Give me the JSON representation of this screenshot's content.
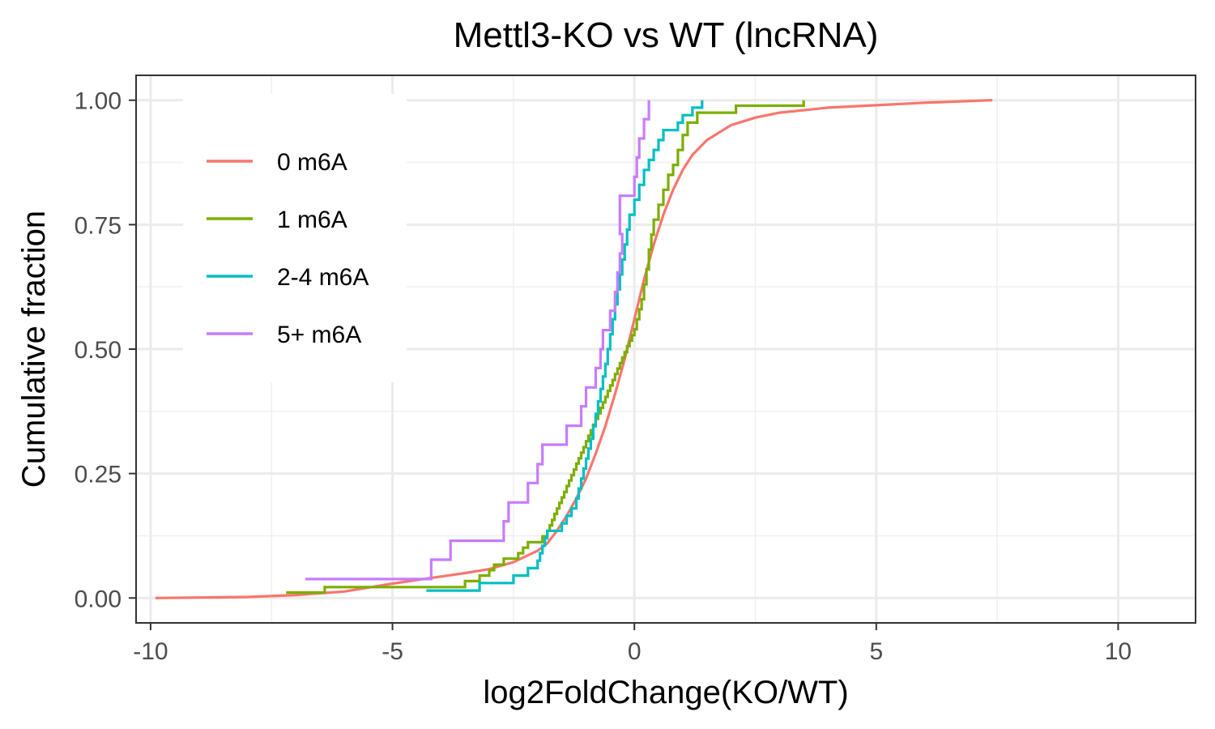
{
  "chart_data": {
    "type": "line",
    "subtype": "empirical cumulative distribution (step)",
    "title": "Mettl3-KO vs WT (lncRNA)",
    "xlabel": "log2FoldChange(KO/WT)",
    "ylabel": "Cumulative fraction",
    "xlim": [
      -10.3,
      11.6
    ],
    "ylim": [
      -0.05,
      1.05
    ],
    "x_ticks": [
      -10,
      -5,
      0,
      5,
      10
    ],
    "x_tick_labels": [
      "-10",
      "-5",
      "0",
      "5",
      "10"
    ],
    "y_ticks": [
      0,
      0.25,
      0.5,
      0.75,
      1
    ],
    "y_tick_labels": [
      "0.00",
      "0.25",
      "0.50",
      "0.75",
      "1.00"
    ],
    "grid": true,
    "legend_position": "top-left inside",
    "series": [
      {
        "name": "0 m6A",
        "color": "#F8766D",
        "step": false,
        "points": [
          [
            -9.9,
            0.0
          ],
          [
            -8.0,
            0.002
          ],
          [
            -7.0,
            0.006
          ],
          [
            -6.0,
            0.013
          ],
          [
            -5.5,
            0.021
          ],
          [
            -5.0,
            0.029
          ],
          [
            -4.5,
            0.036
          ],
          [
            -4.0,
            0.043
          ],
          [
            -3.5,
            0.05
          ],
          [
            -3.0,
            0.058
          ],
          [
            -2.5,
            0.072
          ],
          [
            -2.0,
            0.095
          ],
          [
            -1.8,
            0.11
          ],
          [
            -1.6,
            0.135
          ],
          [
            -1.4,
            0.165
          ],
          [
            -1.2,
            0.2
          ],
          [
            -1.0,
            0.24
          ],
          [
            -0.8,
            0.29
          ],
          [
            -0.6,
            0.345
          ],
          [
            -0.4,
            0.41
          ],
          [
            -0.2,
            0.48
          ],
          [
            0.0,
            0.56
          ],
          [
            0.2,
            0.64
          ],
          [
            0.4,
            0.71
          ],
          [
            0.6,
            0.77
          ],
          [
            0.8,
            0.82
          ],
          [
            1.0,
            0.86
          ],
          [
            1.2,
            0.89
          ],
          [
            1.5,
            0.92
          ],
          [
            2.0,
            0.95
          ],
          [
            2.5,
            0.965
          ],
          [
            3.0,
            0.975
          ],
          [
            4.0,
            0.985
          ],
          [
            5.0,
            0.99
          ],
          [
            6.0,
            0.995
          ],
          [
            7.4,
            1.0
          ]
        ]
      },
      {
        "name": "1 m6A",
        "color": "#7CAE00",
        "step": true,
        "points": [
          [
            -7.2,
            0.011
          ],
          [
            -6.4,
            0.022
          ],
          [
            -3.5,
            0.034
          ],
          [
            -3.2,
            0.045
          ],
          [
            -3.0,
            0.056
          ],
          [
            -2.9,
            0.067
          ],
          [
            -2.7,
            0.079
          ],
          [
            -2.4,
            0.09
          ],
          [
            -2.3,
            0.101
          ],
          [
            -2.2,
            0.112
          ],
          [
            -1.9,
            0.124
          ],
          [
            -1.8,
            0.135
          ],
          [
            -1.75,
            0.146
          ],
          [
            -1.7,
            0.157
          ],
          [
            -1.65,
            0.169
          ],
          [
            -1.6,
            0.18
          ],
          [
            -1.55,
            0.191
          ],
          [
            -1.5,
            0.202
          ],
          [
            -1.45,
            0.213
          ],
          [
            -1.4,
            0.225
          ],
          [
            -1.35,
            0.236
          ],
          [
            -1.3,
            0.247
          ],
          [
            -1.25,
            0.258
          ],
          [
            -1.2,
            0.27
          ],
          [
            -1.15,
            0.281
          ],
          [
            -1.1,
            0.292
          ],
          [
            -1.05,
            0.303
          ],
          [
            -1.0,
            0.315
          ],
          [
            -0.95,
            0.326
          ],
          [
            -0.9,
            0.337
          ],
          [
            -0.85,
            0.348
          ],
          [
            -0.8,
            0.36
          ],
          [
            -0.75,
            0.371
          ],
          [
            -0.7,
            0.382
          ],
          [
            -0.65,
            0.393
          ],
          [
            -0.6,
            0.404
          ],
          [
            -0.55,
            0.416
          ],
          [
            -0.5,
            0.427
          ],
          [
            -0.45,
            0.438
          ],
          [
            -0.4,
            0.45
          ],
          [
            -0.35,
            0.461
          ],
          [
            -0.3,
            0.472
          ],
          [
            -0.25,
            0.483
          ],
          [
            -0.2,
            0.494
          ],
          [
            -0.15,
            0.506
          ],
          [
            -0.1,
            0.517
          ],
          [
            -0.05,
            0.528
          ],
          [
            0.0,
            0.54
          ],
          [
            0.05,
            0.56
          ],
          [
            0.1,
            0.58
          ],
          [
            0.15,
            0.6
          ],
          [
            0.2,
            0.63
          ],
          [
            0.25,
            0.66
          ],
          [
            0.3,
            0.7
          ],
          [
            0.35,
            0.73
          ],
          [
            0.4,
            0.76
          ],
          [
            0.5,
            0.79
          ],
          [
            0.6,
            0.82
          ],
          [
            0.7,
            0.85
          ],
          [
            0.8,
            0.87
          ],
          [
            0.9,
            0.9
          ],
          [
            1.0,
            0.93
          ],
          [
            1.1,
            0.955
          ],
          [
            1.3,
            0.975
          ],
          [
            2.1,
            0.989
          ],
          [
            3.5,
            1.0
          ]
        ]
      },
      {
        "name": "2-4 m6A",
        "color": "#00BFC4",
        "step": true,
        "points": [
          [
            -4.3,
            0.015
          ],
          [
            -3.2,
            0.03
          ],
          [
            -2.5,
            0.045
          ],
          [
            -2.2,
            0.06
          ],
          [
            -2.0,
            0.075
          ],
          [
            -1.95,
            0.09
          ],
          [
            -1.9,
            0.105
          ],
          [
            -1.85,
            0.12
          ],
          [
            -1.8,
            0.135
          ],
          [
            -1.5,
            0.15
          ],
          [
            -1.4,
            0.165
          ],
          [
            -1.3,
            0.18
          ],
          [
            -1.2,
            0.2
          ],
          [
            -1.15,
            0.22
          ],
          [
            -1.1,
            0.24
          ],
          [
            -1.05,
            0.26
          ],
          [
            -1.0,
            0.28
          ],
          [
            -0.95,
            0.3
          ],
          [
            -0.9,
            0.32
          ],
          [
            -0.85,
            0.345
          ],
          [
            -0.8,
            0.37
          ],
          [
            -0.75,
            0.395
          ],
          [
            -0.7,
            0.42
          ],
          [
            -0.65,
            0.445
          ],
          [
            -0.6,
            0.47
          ],
          [
            -0.55,
            0.5
          ],
          [
            -0.5,
            0.53
          ],
          [
            -0.45,
            0.56
          ],
          [
            -0.4,
            0.59
          ],
          [
            -0.35,
            0.62
          ],
          [
            -0.3,
            0.65
          ],
          [
            -0.25,
            0.68
          ],
          [
            -0.2,
            0.71
          ],
          [
            -0.15,
            0.74
          ],
          [
            -0.1,
            0.77
          ],
          [
            0.0,
            0.8
          ],
          [
            0.1,
            0.83
          ],
          [
            0.2,
            0.86
          ],
          [
            0.3,
            0.88
          ],
          [
            0.4,
            0.9
          ],
          [
            0.5,
            0.92
          ],
          [
            0.6,
            0.94
          ],
          [
            0.9,
            0.955
          ],
          [
            1.0,
            0.97
          ],
          [
            1.2,
            0.985
          ],
          [
            1.4,
            1.0
          ]
        ]
      },
      {
        "name": "5+ m6A",
        "color": "#C77CFF",
        "step": true,
        "points": [
          [
            -6.8,
            0.038
          ],
          [
            -4.2,
            0.077
          ],
          [
            -3.8,
            0.115
          ],
          [
            -2.7,
            0.154
          ],
          [
            -2.6,
            0.192
          ],
          [
            -2.2,
            0.231
          ],
          [
            -2.0,
            0.269
          ],
          [
            -1.9,
            0.308
          ],
          [
            -1.4,
            0.346
          ],
          [
            -1.1,
            0.385
          ],
          [
            -1.0,
            0.423
          ],
          [
            -0.8,
            0.462
          ],
          [
            -0.7,
            0.5
          ],
          [
            -0.65,
            0.538
          ],
          [
            -0.5,
            0.577
          ],
          [
            -0.4,
            0.615
          ],
          [
            -0.35,
            0.654
          ],
          [
            -0.3,
            0.692
          ],
          [
            -0.25,
            0.731
          ],
          [
            -0.3,
            0.769
          ],
          [
            -0.3,
            0.808
          ],
          [
            0.0,
            0.846
          ],
          [
            0.05,
            0.885
          ],
          [
            0.1,
            0.923
          ],
          [
            0.2,
            0.962
          ],
          [
            0.3,
            1.0
          ]
        ]
      }
    ]
  }
}
